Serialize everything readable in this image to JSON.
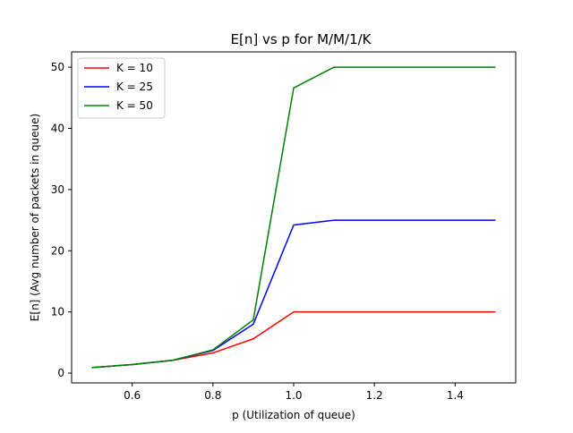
{
  "chart_data": {
    "type": "line",
    "title": "E[n] vs p for M/M/1/K",
    "xlabel": "p (Utilization of queue)",
    "ylabel": "E[n] (Avg number of packets in queue)",
    "xlim": [
      0.45,
      1.55
    ],
    "ylim": [
      -1.6,
      52.5
    ],
    "xticks": [
      0.6,
      0.8,
      1.0,
      1.2,
      1.4
    ],
    "xtick_labels": [
      "0.6",
      "0.8",
      "1.0",
      "1.2",
      "1.4"
    ],
    "yticks": [
      0,
      10,
      20,
      30,
      40,
      50
    ],
    "ytick_labels": [
      "0",
      "10",
      "20",
      "30",
      "40",
      "50"
    ],
    "grid": false,
    "legend_position": "top-left",
    "x": [
      0.5,
      0.6,
      0.7,
      0.8,
      0.9,
      1.0,
      1.1,
      1.2,
      1.3,
      1.4,
      1.5
    ],
    "series": [
      {
        "name": "K = 10",
        "color": "#ff0000",
        "values": [
          0.9,
          1.4,
          2.1,
          3.3,
          5.6,
          10.0,
          10.0,
          10.0,
          10.0,
          10.0,
          10.0
        ]
      },
      {
        "name": "K = 25",
        "color": "#0000ff",
        "values": [
          0.9,
          1.4,
          2.1,
          3.7,
          8.0,
          24.2,
          25.0,
          25.0,
          25.0,
          25.0,
          25.0
        ]
      },
      {
        "name": "K = 50",
        "color": "#008000",
        "values": [
          0.9,
          1.4,
          2.1,
          3.8,
          8.7,
          46.6,
          50.0,
          50.0,
          50.0,
          50.0,
          50.0
        ]
      }
    ]
  }
}
